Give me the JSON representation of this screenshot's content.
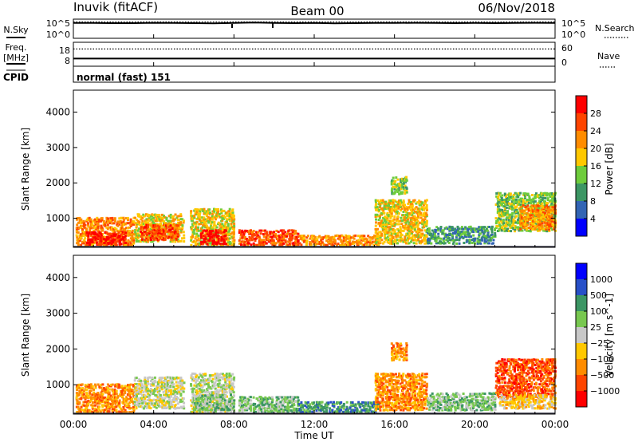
{
  "header": {
    "station": "Inuvik (fitACF)",
    "beam": "Beam 00",
    "date": "06/Nov/2018"
  },
  "sky_panel": {
    "left_label": "N.Sky",
    "right_label": "N.Search",
    "left_ticks": [
      "10^5",
      "10^0"
    ],
    "right_ticks": [
      "10^5",
      "10^0"
    ],
    "sky_level": [
      0.8,
      0.8,
      0.79,
      0.79,
      0.81,
      0.8,
      0.79,
      0.78,
      0.8,
      0.82,
      0.8,
      0.79,
      0.8,
      0.78,
      0.79,
      0.8,
      0.8,
      0.81,
      0.8,
      0.79,
      0.8,
      0.79,
      0.8,
      0.81,
      0.8
    ],
    "search_level": [
      0.86,
      0.86,
      0.86,
      0.86,
      0.86,
      0.86,
      0.86,
      0.86,
      0.86,
      0.86,
      0.86,
      0.86,
      0.86,
      0.86,
      0.86,
      0.86,
      0.86,
      0.86,
      0.86,
      0.86,
      0.86,
      0.86,
      0.86,
      0.86,
      0.86
    ]
  },
  "freq_panel": {
    "left_label_1": "Freq.",
    "left_label_2": "[MHz]",
    "right_label": "Nave",
    "left_ticks": [
      "18",
      "8"
    ],
    "right_ticks": [
      "60",
      "0"
    ],
    "freq_level": 0.32,
    "nave_level": 0.72
  },
  "cpid": {
    "label": "CPID",
    "text": "normal (fast) 151"
  },
  "x_axis": {
    "label": "Time UT",
    "ticks": [
      "00:00",
      "04:00",
      "08:00",
      "12:00",
      "16:00",
      "20:00",
      "00:00"
    ]
  },
  "chart_data": [
    {
      "type": "heatmap",
      "title": "",
      "ylabel": "Slant Range [km]",
      "yticks": [
        "1000",
        "2000",
        "3000",
        "4000"
      ],
      "ylim": [
        180,
        4620
      ],
      "xlim_hours": [
        0,
        24
      ],
      "colorbar": {
        "label": "Power [dB]",
        "ticks": [
          "28",
          "24",
          "20",
          "16",
          "12",
          "8",
          "4"
        ],
        "colors": [
          "#ff0000",
          "#ff4500",
          "#ff8c00",
          "#ffc800",
          "#6ecc3c",
          "#3c9664",
          "#3264b4",
          "#0000ff"
        ]
      },
      "blobs": [
        {
          "t0": 0.1,
          "t1": 3.0,
          "r0": 200,
          "r1": 1000,
          "ci": 2
        },
        {
          "t0": 0.6,
          "t1": 2.6,
          "r0": 220,
          "r1": 600,
          "ci": 0
        },
        {
          "t0": 3.0,
          "t1": 5.5,
          "r0": 300,
          "r1": 1100,
          "ci": 3
        },
        {
          "t0": 3.3,
          "t1": 5.2,
          "r0": 350,
          "r1": 800,
          "ci": 1
        },
        {
          "t0": 5.8,
          "t1": 8.0,
          "r0": 200,
          "r1": 1250,
          "ci": 3
        },
        {
          "t0": 6.3,
          "t1": 7.6,
          "r0": 230,
          "r1": 650,
          "ci": 0
        },
        {
          "t0": 8.2,
          "t1": 11.2,
          "r0": 200,
          "r1": 650,
          "ci": 1
        },
        {
          "t0": 11.2,
          "t1": 15.2,
          "r0": 200,
          "r1": 500,
          "ci": 2
        },
        {
          "t0": 15.0,
          "t1": 17.6,
          "r0": 250,
          "r1": 1500,
          "ci": 3
        },
        {
          "t0": 15.8,
          "t1": 16.6,
          "r0": 1650,
          "r1": 2150,
          "ci": 4
        },
        {
          "t0": 17.6,
          "t1": 21.0,
          "r0": 250,
          "r1": 750,
          "ci": 5
        },
        {
          "t0": 21.0,
          "t1": 24.0,
          "r0": 600,
          "r1": 1700,
          "ci": 4
        },
        {
          "t0": 22.2,
          "t1": 24.0,
          "r0": 650,
          "r1": 1350,
          "ci": 2
        }
      ]
    },
    {
      "type": "heatmap",
      "title": "",
      "ylabel": "Slant Range [km]",
      "yticks": [
        "1000",
        "2000",
        "3000",
        "4000"
      ],
      "ylim": [
        180,
        4620
      ],
      "xlim_hours": [
        0,
        24
      ],
      "colorbar": {
        "label": "Velocity [m s^-1]",
        "ticks": [
          "1000",
          "500",
          "100",
          "25",
          "−25",
          "−100",
          "−500",
          "−1000"
        ],
        "colors": [
          "#0000ff",
          "#2850c8",
          "#3c9664",
          "#78c850",
          "#c8c8c8",
          "#ffc800",
          "#ff8c00",
          "#ff4500",
          "#ff0000"
        ]
      },
      "blobs": [
        {
          "t0": 0.1,
          "t1": 3.0,
          "r0": 200,
          "r1": 1000,
          "ci": 6
        },
        {
          "t0": 3.0,
          "t1": 5.5,
          "r0": 300,
          "r1": 1200,
          "ci": 4
        },
        {
          "t0": 5.8,
          "t1": 8.0,
          "r0": 200,
          "r1": 1300,
          "ci": 4
        },
        {
          "t0": 6.0,
          "t1": 8.0,
          "r0": 250,
          "r1": 700,
          "ci": 3
        },
        {
          "t0": 8.2,
          "t1": 11.2,
          "r0": 200,
          "r1": 650,
          "ci": 3
        },
        {
          "t0": 11.2,
          "t1": 15.2,
          "r0": 200,
          "r1": 500,
          "ci": 2
        },
        {
          "t0": 15.0,
          "t1": 17.6,
          "r0": 250,
          "r1": 1300,
          "ci": 6
        },
        {
          "t0": 15.8,
          "t1": 16.6,
          "r0": 1650,
          "r1": 2150,
          "ci": 6
        },
        {
          "t0": 17.6,
          "t1": 21.0,
          "r0": 250,
          "r1": 750,
          "ci": 3
        },
        {
          "t0": 21.0,
          "t1": 24.0,
          "r0": 600,
          "r1": 1700,
          "ci": 7
        },
        {
          "t0": 21.2,
          "t1": 24.0,
          "r0": 300,
          "r1": 700,
          "ci": 5
        }
      ]
    }
  ]
}
